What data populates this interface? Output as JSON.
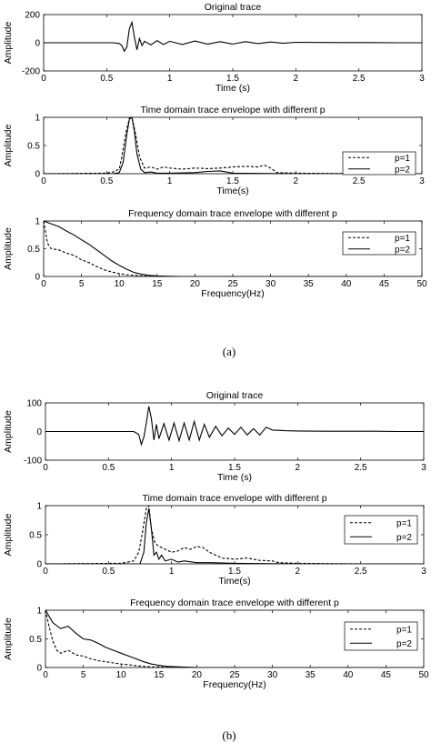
{
  "figure_a": {
    "caption": "(a)",
    "panels": [
      {
        "title": "Original trace",
        "xlabel": "Time (s)",
        "ylabel": "Amplitude"
      },
      {
        "title": "Time domain trace envelope with different p",
        "xlabel": "Time(s)",
        "ylabel": "Amplitude"
      },
      {
        "title": "Frequency domain trace envelope with different p",
        "xlabel": "Frequency(Hz)",
        "ylabel": "Amplitude"
      }
    ]
  },
  "figure_b": {
    "caption": "(b)",
    "panels": [
      {
        "title": "Original trace",
        "xlabel": "Time (s)",
        "ylabel": "Amplitude"
      },
      {
        "title": "Time domain trace envelope with different p",
        "xlabel": "Time(s)",
        "ylabel": "Amplitude"
      },
      {
        "title": "Frequency domain trace envelope with different p",
        "xlabel": "Frequency(Hz)",
        "ylabel": "Amplitude"
      }
    ]
  },
  "chart_data": [
    {
      "type": "line",
      "title": "Original trace",
      "xlabel": "Time (s)",
      "ylabel": "Amplitude",
      "xlim": [
        0,
        3
      ],
      "ylim": [
        -200,
        200
      ],
      "xticks": [
        0,
        0.5,
        1,
        1.5,
        2,
        2.5,
        3
      ],
      "yticks": [
        -200,
        0,
        200
      ],
      "series": [
        {
          "style": "solid",
          "x": [
            0,
            0.55,
            0.6,
            0.62,
            0.64,
            0.66,
            0.68,
            0.7,
            0.72,
            0.74,
            0.76,
            0.78,
            0.8,
            0.85,
            0.9,
            0.95,
            1.0,
            1.1,
            1.2,
            1.3,
            1.4,
            1.5,
            1.6,
            1.7,
            1.8,
            1.9,
            2.0,
            2.2,
            2.4,
            2.6,
            2.8,
            3.0
          ],
          "y": [
            0,
            0,
            -5,
            -20,
            -60,
            -30,
            100,
            145,
            40,
            -50,
            30,
            -20,
            10,
            -15,
            15,
            -12,
            10,
            -12,
            12,
            -10,
            8,
            -10,
            8,
            -6,
            5,
            -4,
            3,
            2,
            1,
            1,
            0,
            0
          ]
        }
      ]
    },
    {
      "type": "line",
      "title": "Time domain trace envelope with different p",
      "xlabel": "Time(s)",
      "ylabel": "Amplitude",
      "xlim": [
        0,
        3
      ],
      "ylim": [
        0,
        1
      ],
      "xticks": [
        0,
        0.5,
        1,
        1.5,
        2,
        2.5,
        3
      ],
      "yticks": [
        0,
        0.5,
        1
      ],
      "legend": "right",
      "series": [
        {
          "name": "p=1",
          "style": "dashed",
          "x": [
            0,
            0.5,
            0.55,
            0.6,
            0.62,
            0.65,
            0.68,
            0.7,
            0.73,
            0.76,
            0.8,
            0.85,
            0.9,
            0.95,
            1.0,
            1.1,
            1.2,
            1.3,
            1.4,
            1.5,
            1.6,
            1.7,
            1.75,
            1.8,
            1.85,
            2.0,
            2.5,
            3.0
          ],
          "y": [
            0,
            0.01,
            0.03,
            0.08,
            0.3,
            0.7,
            0.98,
            1.0,
            0.7,
            0.3,
            0.1,
            0.12,
            0.08,
            0.12,
            0.1,
            0.08,
            0.1,
            0.09,
            0.1,
            0.12,
            0.13,
            0.12,
            0.15,
            0.1,
            0.02,
            0.01,
            0,
            0
          ]
        },
        {
          "name": "p=2",
          "style": "solid",
          "x": [
            0,
            0.55,
            0.6,
            0.63,
            0.66,
            0.68,
            0.7,
            0.72,
            0.74,
            0.77,
            0.8,
            0.85,
            0.9,
            1.0,
            1.2,
            1.3,
            1.4,
            1.5,
            2.0,
            2.5,
            3.0
          ],
          "y": [
            0,
            0,
            0.02,
            0.2,
            0.7,
            0.97,
            1.0,
            0.75,
            0.35,
            0.08,
            0.02,
            0.03,
            0.01,
            0.01,
            0.02,
            0.04,
            0.05,
            0.01,
            0,
            0,
            0
          ]
        }
      ]
    },
    {
      "type": "line",
      "title": "Frequency domain trace envelope with different p",
      "xlabel": "Frequency(Hz)",
      "ylabel": "Amplitude",
      "xlim": [
        0,
        50
      ],
      "ylim": [
        0,
        1
      ],
      "xticks": [
        0,
        5,
        10,
        15,
        20,
        25,
        30,
        35,
        40,
        45,
        50
      ],
      "yticks": [
        0,
        0.5,
        1
      ],
      "legend": "right",
      "series": [
        {
          "name": "p=1",
          "style": "dashed",
          "x": [
            0,
            0.5,
            1,
            2,
            3,
            4,
            5,
            6,
            7,
            8,
            9,
            10,
            11,
            12,
            13,
            15,
            20,
            50
          ],
          "y": [
            1.0,
            0.6,
            0.5,
            0.48,
            0.42,
            0.38,
            0.3,
            0.25,
            0.18,
            0.12,
            0.08,
            0.05,
            0.03,
            0.02,
            0.01,
            0,
            0,
            0
          ]
        },
        {
          "name": "p=2",
          "style": "solid",
          "x": [
            0,
            1,
            2,
            3,
            4,
            5,
            6,
            7,
            8,
            9,
            10,
            11,
            12,
            13,
            14,
            15,
            16,
            18,
            20,
            50
          ],
          "y": [
            1.0,
            0.95,
            0.9,
            0.82,
            0.75,
            0.66,
            0.58,
            0.48,
            0.38,
            0.28,
            0.2,
            0.13,
            0.07,
            0.04,
            0.02,
            0.01,
            0.005,
            0,
            0,
            0
          ]
        }
      ]
    },
    {
      "type": "line",
      "title": "Original trace",
      "xlabel": "Time (s)",
      "ylabel": "Amplitude",
      "xlim": [
        0,
        3
      ],
      "ylim": [
        -100,
        100
      ],
      "xticks": [
        0,
        0.5,
        1,
        1.5,
        2,
        2.5,
        3
      ],
      "yticks": [
        -100,
        0,
        100
      ],
      "series": [
        {
          "style": "solid",
          "x": [
            0,
            0.7,
            0.74,
            0.76,
            0.78,
            0.8,
            0.82,
            0.84,
            0.86,
            0.88,
            0.9,
            0.94,
            0.98,
            1.02,
            1.06,
            1.1,
            1.14,
            1.18,
            1.22,
            1.26,
            1.3,
            1.35,
            1.4,
            1.45,
            1.5,
            1.55,
            1.6,
            1.65,
            1.7,
            1.75,
            1.8,
            1.9,
            2.0,
            2.2,
            2.4,
            2.6,
            2.8,
            3.0
          ],
          "y": [
            0,
            0,
            -10,
            -45,
            -20,
            30,
            88,
            45,
            -30,
            25,
            -25,
            28,
            -30,
            30,
            -32,
            30,
            -30,
            35,
            -30,
            25,
            -20,
            18,
            -15,
            12,
            -10,
            15,
            -12,
            10,
            -12,
            15,
            5,
            3,
            2,
            1,
            1,
            1,
            0,
            0
          ]
        }
      ]
    },
    {
      "type": "line",
      "title": "Time domain trace envelope with different p",
      "xlabel": "Time(s)",
      "ylabel": "Amplitude",
      "xlim": [
        0,
        3
      ],
      "ylim": [
        0,
        1
      ],
      "xticks": [
        0,
        0.5,
        1,
        1.5,
        2,
        2.5,
        3
      ],
      "yticks": [
        0,
        0.5,
        1
      ],
      "legend": "right",
      "series": [
        {
          "name": "p=1",
          "style": "dashed",
          "x": [
            0,
            0.6,
            0.7,
            0.74,
            0.77,
            0.8,
            0.82,
            0.84,
            0.87,
            0.9,
            0.95,
            1.0,
            1.05,
            1.1,
            1.15,
            1.2,
            1.25,
            1.3,
            1.4,
            1.5,
            1.6,
            1.7,
            1.8,
            1.85,
            2.0,
            2.5,
            3.0
          ],
          "y": [
            0,
            0.01,
            0.05,
            0.2,
            0.55,
            0.95,
            1.0,
            0.6,
            0.35,
            0.3,
            0.25,
            0.2,
            0.22,
            0.28,
            0.25,
            0.3,
            0.28,
            0.2,
            0.1,
            0.08,
            0.1,
            0.06,
            0.05,
            0.02,
            0.01,
            0,
            0
          ]
        },
        {
          "name": "p=2",
          "style": "solid",
          "x": [
            0,
            0.75,
            0.78,
            0.8,
            0.82,
            0.84,
            0.86,
            0.88,
            0.9,
            0.92,
            0.95,
            1.0,
            1.05,
            1.1,
            1.2,
            1.3,
            1.5,
            2.0,
            2.5,
            3.0
          ],
          "y": [
            0,
            0,
            0.2,
            0.7,
            0.95,
            0.6,
            0.15,
            0.2,
            0.08,
            0.15,
            0.05,
            0.08,
            0.03,
            0.05,
            0.02,
            0.02,
            0.01,
            0,
            0,
            0
          ]
        }
      ]
    },
    {
      "type": "line",
      "title": "Frequency domain trace envelope with different p",
      "xlabel": "Frequency(Hz)",
      "ylabel": "Amplitude",
      "xlim": [
        0,
        50
      ],
      "ylim": [
        0,
        1
      ],
      "xticks": [
        0,
        5,
        10,
        15,
        20,
        25,
        30,
        35,
        40,
        45,
        50
      ],
      "yticks": [
        0,
        0.5,
        1
      ],
      "legend": "right",
      "series": [
        {
          "name": "p=1",
          "style": "dashed",
          "x": [
            0,
            0.5,
            1,
            1.5,
            2,
            3,
            4,
            5,
            6,
            7,
            8,
            9,
            10,
            11,
            12,
            13,
            14,
            15,
            20,
            50
          ],
          "y": [
            1.0,
            0.7,
            0.45,
            0.3,
            0.25,
            0.3,
            0.22,
            0.2,
            0.15,
            0.12,
            0.1,
            0.08,
            0.06,
            0.05,
            0.03,
            0.02,
            0.01,
            0.01,
            0,
            0
          ]
        },
        {
          "name": "p=2",
          "style": "solid",
          "x": [
            0,
            1,
            2,
            3,
            4,
            5,
            6,
            7,
            8,
            9,
            10,
            11,
            12,
            13,
            14,
            15,
            16,
            18,
            20,
            50
          ],
          "y": [
            1.0,
            0.78,
            0.68,
            0.72,
            0.6,
            0.5,
            0.48,
            0.42,
            0.35,
            0.3,
            0.25,
            0.2,
            0.15,
            0.1,
            0.06,
            0.04,
            0.02,
            0.01,
            0,
            0
          ]
        }
      ]
    }
  ]
}
